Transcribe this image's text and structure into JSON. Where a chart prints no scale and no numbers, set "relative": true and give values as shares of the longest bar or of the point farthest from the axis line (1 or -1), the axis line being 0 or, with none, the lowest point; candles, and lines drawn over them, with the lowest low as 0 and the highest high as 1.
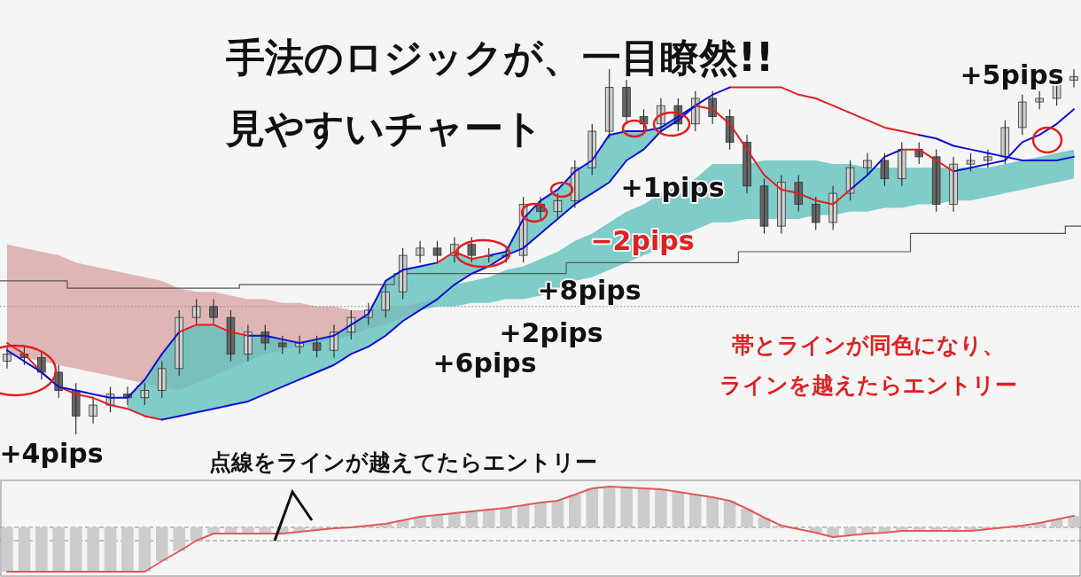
{
  "chart_data": [
    {
      "type": "candlestick",
      "title": "手法のロジックが、一目瞭然!!",
      "subtitle": "見やすいチャート",
      "relative": true,
      "categories": [
        null,
        null,
        null,
        null,
        null,
        null,
        null,
        null,
        null,
        null,
        null,
        null,
        null,
        null,
        null,
        null,
        null,
        null,
        null,
        null,
        null,
        null,
        null,
        null,
        null,
        null,
        null,
        null,
        null,
        null,
        null,
        null,
        null,
        null,
        null,
        null,
        null,
        null,
        null,
        null,
        null,
        null,
        null,
        null,
        null,
        null,
        null,
        null,
        null,
        null,
        null,
        null,
        null,
        null,
        null,
        null,
        null,
        null,
        null,
        null,
        null,
        null,
        null
      ],
      "ohlc": [
        [
          0.2,
          0.24,
          0.18,
          0.22
        ],
        [
          0.22,
          0.24,
          0.19,
          0.21
        ],
        [
          0.21,
          0.23,
          0.15,
          0.17
        ],
        [
          0.17,
          0.19,
          0.1,
          0.12
        ],
        [
          0.12,
          0.14,
          0.0,
          0.05
        ],
        [
          0.05,
          0.1,
          0.03,
          0.08
        ],
        [
          0.08,
          0.13,
          0.06,
          0.11
        ],
        [
          0.11,
          0.13,
          0.08,
          0.1
        ],
        [
          0.1,
          0.14,
          0.08,
          0.12
        ],
        [
          0.12,
          0.2,
          0.1,
          0.18
        ],
        [
          0.18,
          0.34,
          0.16,
          0.32
        ],
        [
          0.32,
          0.37,
          0.3,
          0.35
        ],
        [
          0.35,
          0.37,
          0.3,
          0.32
        ],
        [
          0.32,
          0.34,
          0.2,
          0.22
        ],
        [
          0.22,
          0.3,
          0.2,
          0.28
        ],
        [
          0.28,
          0.3,
          0.23,
          0.25
        ],
        [
          0.25,
          0.27,
          0.22,
          0.24
        ],
        [
          0.24,
          0.27,
          0.22,
          0.25
        ],
        [
          0.25,
          0.27,
          0.21,
          0.23
        ],
        [
          0.23,
          0.3,
          0.21,
          0.28
        ],
        [
          0.28,
          0.34,
          0.26,
          0.32
        ],
        [
          0.32,
          0.36,
          0.3,
          0.34
        ],
        [
          0.34,
          0.41,
          0.32,
          0.39
        ],
        [
          0.39,
          0.51,
          0.37,
          0.49
        ],
        [
          0.49,
          0.53,
          0.47,
          0.51
        ],
        [
          0.51,
          0.53,
          0.47,
          0.49
        ],
        [
          0.49,
          0.54,
          0.47,
          0.52
        ],
        [
          0.52,
          0.54,
          0.47,
          0.49
        ],
        [
          0.49,
          0.51,
          0.47,
          0.49
        ],
        [
          0.49,
          0.51,
          0.47,
          0.49
        ],
        [
          0.49,
          0.65,
          0.47,
          0.63
        ],
        [
          0.63,
          0.65,
          0.59,
          0.61
        ],
        [
          0.61,
          0.66,
          0.59,
          0.64
        ],
        [
          0.64,
          0.75,
          0.62,
          0.73
        ],
        [
          0.73,
          0.85,
          0.71,
          0.83
        ],
        [
          0.83,
          1.0,
          0.81,
          0.95
        ],
        [
          0.95,
          0.97,
          0.85,
          0.87
        ],
        [
          0.87,
          0.89,
          0.83,
          0.85
        ],
        [
          0.85,
          0.92,
          0.83,
          0.9
        ],
        [
          0.9,
          0.92,
          0.83,
          0.85
        ],
        [
          0.85,
          0.94,
          0.83,
          0.92
        ],
        [
          0.92,
          0.94,
          0.85,
          0.87
        ],
        [
          0.87,
          0.89,
          0.78,
          0.8
        ],
        [
          0.8,
          0.82,
          0.66,
          0.68
        ],
        [
          0.68,
          0.7,
          0.55,
          0.57
        ],
        [
          0.57,
          0.71,
          0.55,
          0.69
        ],
        [
          0.69,
          0.71,
          0.61,
          0.63
        ],
        [
          0.63,
          0.65,
          0.56,
          0.58
        ],
        [
          0.58,
          0.68,
          0.56,
          0.66
        ],
        [
          0.66,
          0.75,
          0.64,
          0.73
        ],
        [
          0.73,
          0.77,
          0.71,
          0.75
        ],
        [
          0.75,
          0.77,
          0.68,
          0.7
        ],
        [
          0.7,
          0.8,
          0.68,
          0.78
        ],
        [
          0.78,
          0.8,
          0.74,
          0.76
        ],
        [
          0.76,
          0.78,
          0.61,
          0.63
        ],
        [
          0.63,
          0.76,
          0.61,
          0.74
        ],
        [
          0.74,
          0.77,
          0.72,
          0.75
        ],
        [
          0.75,
          0.78,
          0.73,
          0.76
        ],
        [
          0.76,
          0.86,
          0.74,
          0.84
        ],
        [
          0.84,
          0.93,
          0.82,
          0.91
        ],
        [
          0.91,
          0.94,
          0.89,
          0.92
        ],
        [
          0.92,
          0.99,
          0.9,
          0.97
        ],
        [
          0.97,
          1.0,
          0.95,
          0.98
        ]
      ],
      "series": [
        {
          "type": "line",
          "color": "#d9a5a5",
          "values": [
            null,
            null,
            null,
            null,
            null,
            null,
            null,
            null,
            null,
            null,
            null,
            null,
            null,
            null,
            null,
            null,
            null,
            null,
            null,
            null,
            null,
            null,
            null,
            null,
            null,
            null,
            null,
            null,
            null,
            null,
            null,
            null,
            null,
            null,
            null,
            null,
            null,
            null,
            null,
            null,
            null,
            null,
            null,
            null,
            null,
            null,
            null,
            null,
            null,
            null,
            null,
            null,
            null,
            null,
            null,
            null,
            null,
            null,
            null,
            null,
            null,
            null,
            null
          ],
          "upper": [
            0.52,
            0.51,
            0.5,
            0.49,
            0.47,
            0.46,
            0.45,
            0.44,
            0.43,
            0.42,
            0.4,
            0.39,
            0.39,
            0.38,
            0.37,
            0.37,
            0.36,
            0.36,
            0.35,
            0.35,
            0.34,
            0.34,
            0.35,
            0.35,
            0.36,
            null,
            null,
            null,
            null,
            null,
            null,
            null,
            null,
            null,
            null,
            null,
            null,
            null,
            null,
            null,
            null,
            null,
            null,
            null,
            null,
            null,
            null,
            null,
            null,
            null,
            null,
            null,
            null,
            null,
            null,
            null,
            null,
            null,
            null,
            null,
            null,
            null,
            null
          ],
          "lower": [
            0.22,
            0.21,
            0.2,
            0.19,
            0.18,
            0.17,
            0.16,
            0.15,
            0.14,
            0.13,
            0.12,
            0.14,
            0.16,
            0.18,
            0.2,
            0.22,
            0.23,
            0.24,
            0.25,
            0.26,
            0.27,
            0.29,
            0.3,
            0.32,
            0.34,
            null,
            null,
            null,
            null,
            null,
            null,
            null,
            null,
            null,
            null,
            null,
            null,
            null,
            null,
            null,
            null,
            null,
            null,
            null,
            null,
            null,
            null,
            null,
            null,
            null,
            null,
            null,
            null,
            null,
            null,
            null,
            null,
            null,
            null,
            null,
            null,
            null,
            null
          ]
        },
        {
          "type": "line",
          "color": "#62c2be",
          "values": [
            null,
            null,
            null,
            null,
            null,
            null,
            null,
            null,
            null,
            null,
            null,
            null,
            null,
            null,
            null,
            null,
            null,
            null,
            null,
            null,
            null,
            null,
            null,
            null,
            null,
            null,
            null,
            null,
            null,
            null,
            null,
            null,
            null,
            null,
            null,
            null,
            null,
            null,
            null,
            null,
            null,
            null,
            null,
            null,
            null,
            null,
            null,
            null,
            null,
            null,
            null,
            null,
            null,
            null,
            null,
            null,
            null,
            null,
            null,
            null,
            null,
            null,
            null
          ],
          "upper": [
            null,
            null,
            null,
            null,
            null,
            null,
            null,
            null,
            null,
            null,
            null,
            null,
            null,
            null,
            null,
            null,
            null,
            null,
            null,
            null,
            null,
            null,
            null,
            null,
            0.36,
            0.37,
            0.41,
            0.42,
            0.43,
            0.45,
            0.46,
            0.48,
            0.5,
            0.53,
            0.55,
            0.58,
            0.61,
            0.63,
            0.66,
            0.68,
            0.7,
            0.74,
            0.74,
            0.74,
            0.75,
            0.75,
            0.75,
            0.75,
            0.74,
            0.74,
            0.73,
            0.73,
            0.73,
            0.73,
            0.73,
            0.73,
            0.73,
            0.73,
            0.74,
            0.75,
            0.76,
            0.77,
            0.78
          ],
          "lower": [
            null,
            null,
            null,
            null,
            null,
            null,
            null,
            null,
            null,
            null,
            null,
            null,
            null,
            null,
            null,
            null,
            null,
            null,
            null,
            null,
            null,
            null,
            null,
            null,
            0.34,
            0.35,
            0.35,
            0.36,
            0.36,
            0.37,
            0.37,
            0.38,
            0.4,
            0.42,
            0.43,
            0.45,
            0.47,
            0.49,
            0.51,
            0.54,
            0.56,
            0.58,
            0.58,
            0.59,
            0.59,
            0.59,
            0.59,
            0.6,
            0.6,
            0.61,
            0.61,
            0.62,
            0.62,
            0.63,
            0.63,
            0.64,
            0.64,
            0.65,
            0.66,
            0.67,
            0.68,
            0.69,
            0.7
          ]
        },
        {
          "type": "line",
          "color": "#62c2be",
          "values": [
            null,
            null,
            null,
            null,
            null,
            null,
            null,
            null,
            null,
            null,
            null,
            null,
            null,
            null,
            null,
            null,
            null,
            null,
            null,
            null,
            null,
            null,
            null,
            null,
            null,
            null,
            null,
            null,
            null,
            null,
            null,
            null,
            null,
            null,
            null,
            null,
            null,
            null,
            null,
            null,
            null,
            null,
            null,
            null,
            null,
            null,
            null,
            null,
            null,
            null,
            null,
            null,
            null,
            null,
            null,
            null,
            null,
            null,
            null,
            null,
            null,
            null,
            null
          ],
          "upper": [
            null,
            null,
            null,
            null,
            null,
            null,
            null,
            0.1,
            0.15,
            0.22,
            0.28,
            0.3,
            0.3,
            0.28,
            0.27,
            0.27,
            0.26,
            0.25,
            0.26,
            0.27,
            0.3,
            0.33,
            0.42,
            0.45,
            0.46,
            0.47,
            0.5,
            0.48,
            0.49,
            0.5,
            0.59,
            0.64,
            0.67,
            0.72,
            0.75,
            0.82,
            0.83,
            0.83,
            0.84,
            0.87,
            0.9,
            null,
            null,
            null,
            null,
            null,
            null,
            null,
            null,
            null,
            null,
            null,
            null,
            null,
            null,
            null,
            null,
            null,
            null,
            null,
            null,
            null,
            null
          ],
          "lower": [
            null,
            null,
            null,
            null,
            null,
            null,
            null,
            0.07,
            0.05,
            0.04,
            0.05,
            0.06,
            0.07,
            0.08,
            0.09,
            0.11,
            0.13,
            0.15,
            0.17,
            0.19,
            0.22,
            0.24,
            0.27,
            0.31,
            0.34,
            0.37,
            0.41,
            0.44,
            0.46,
            0.49,
            0.51,
            0.55,
            0.59,
            0.63,
            0.66,
            0.69,
            0.75,
            0.78,
            0.83,
            0.86,
            0.9,
            null,
            null,
            null,
            null,
            null,
            null,
            null,
            null,
            null,
            null,
            null,
            null,
            null,
            null,
            null,
            null,
            null,
            null,
            null,
            null,
            null,
            null
          ]
        },
        {
          "type": "step",
          "color": "#555555",
          "values": [
            0.42,
            0.42,
            0.42,
            0.42,
            0.4,
            0.4,
            0.4,
            0.4,
            0.4,
            0.4,
            0.4,
            0.4,
            0.4,
            0.4,
            0.41,
            0.41,
            0.41,
            0.41,
            0.41,
            0.41,
            0.41,
            0.41,
            0.41,
            0.44,
            0.44,
            0.44,
            0.44,
            0.44,
            0.44,
            0.44,
            0.44,
            0.44,
            0.44,
            0.47,
            0.47,
            0.47,
            0.47,
            0.47,
            0.47,
            0.47,
            0.47,
            0.47,
            0.47,
            0.5,
            0.5,
            0.5,
            0.5,
            0.5,
            0.5,
            0.5,
            0.5,
            0.5,
            0.5,
            0.55,
            0.55,
            0.55,
            0.55,
            0.55,
            0.55,
            0.55,
            0.55,
            0.55,
            0.57
          ]
        },
        {
          "type": "line",
          "color": "#e02020",
          "values": [
            0.25,
            0.22,
            0.17,
            0.13,
            0.11,
            0.1,
            0.08,
            0.07,
            0.05,
            0.04,
            null,
            null,
            null,
            null,
            null,
            null,
            null,
            null,
            null,
            null,
            null,
            null,
            null,
            null,
            null,
            null,
            null,
            null,
            null,
            null,
            null,
            null,
            null,
            null,
            null,
            null,
            null,
            null,
            null,
            null,
            null,
            null,
            0.95,
            0.95,
            0.95,
            0.95,
            0.93,
            0.92,
            0.9,
            0.88,
            0.86,
            0.84,
            0.83,
            0.82,
            null,
            null,
            null,
            null,
            null,
            null,
            null,
            null,
            null
          ]
        },
        {
          "type": "line",
          "color": "#1010d0",
          "values": [
            null,
            null,
            null,
            null,
            null,
            null,
            null,
            null,
            null,
            0.04,
            0.05,
            0.06,
            0.07,
            0.08,
            0.09,
            0.11,
            0.13,
            0.15,
            0.17,
            0.19,
            0.22,
            0.24,
            0.27,
            0.31,
            0.34,
            0.37,
            0.41,
            0.44,
            0.46,
            0.49,
            0.51,
            0.55,
            0.59,
            0.63,
            0.66,
            0.69,
            0.75,
            0.78,
            0.83,
            0.86,
            0.9,
            0.93,
            0.95,
            null,
            null,
            null,
            null,
            null,
            null,
            null,
            null,
            null,
            null,
            0.82,
            0.81,
            0.79,
            0.78,
            0.77,
            0.76,
            0.75,
            0.75,
            0.75,
            0.76
          ]
        },
        {
          "type": "line",
          "color": "#1010d0",
          "values": [
            0.23,
            0.2,
            0.17,
            0.13,
            0.12,
            0.11,
            0.1,
            0.1,
            0.15,
            0.22,
            0.28,
            null,
            null,
            null,
            0.27,
            0.27,
            0.26,
            0.25,
            0.26,
            0.27,
            0.3,
            0.33,
            0.42,
            0.45,
            0.46,
            0.47,
            null,
            null,
            0.49,
            0.5,
            0.59,
            0.64,
            0.67,
            0.72,
            0.75,
            0.82,
            0.83,
            0.83,
            0.84,
            0.87,
            0.9,
            null,
            null,
            null,
            null,
            null,
            null,
            null,
            null,
            0.67,
            0.71,
            0.76,
            0.78,
            null,
            null,
            0.72,
            0.73,
            0.74,
            0.75,
            0.8,
            0.82,
            0.85,
            0.89
          ]
        },
        {
          "type": "line",
          "color": "#e02020",
          "values": [
            null,
            null,
            null,
            null,
            null,
            null,
            null,
            null,
            null,
            null,
            0.28,
            0.3,
            0.3,
            0.28,
            0.27,
            null,
            null,
            null,
            null,
            null,
            null,
            null,
            null,
            null,
            null,
            0.47,
            0.5,
            0.48,
            0.49,
            null,
            null,
            null,
            null,
            null,
            null,
            null,
            null,
            null,
            null,
            null,
            0.9,
            0.89,
            0.85,
            0.78,
            0.71,
            0.67,
            0.66,
            0.64,
            0.63,
            0.67,
            null,
            null,
            0.78,
            0.78,
            0.75,
            0.72,
            null,
            null,
            null,
            null,
            null,
            null,
            null
          ]
        }
      ],
      "ref_lines": [
        {
          "axis": "y",
          "value": 0.35,
          "color": "#999999",
          "line_style": "dotted"
        }
      ],
      "annotations": [
        "+4pips",
        "+6pips",
        "+2pips",
        "+8pips",
        "−2pips",
        "+1pips",
        "+5pips",
        "帯とラインが同色になり、",
        "ラインを越えたらエントリー"
      ]
    },
    {
      "type": "bar",
      "relative": true,
      "categories": [
        null,
        null,
        null,
        null,
        null,
        null,
        null,
        null,
        null,
        null,
        null,
        null,
        null,
        null,
        null,
        null,
        null,
        null,
        null,
        null,
        null,
        null,
        null,
        null,
        null,
        null,
        null,
        null,
        null,
        null,
        null,
        null,
        null,
        null,
        null,
        null,
        null,
        null,
        null,
        null,
        null,
        null,
        null,
        null,
        null,
        null,
        null,
        null,
        null,
        null,
        null,
        null,
        null,
        null,
        null,
        null,
        null,
        null,
        null,
        null,
        null,
        null,
        null
      ],
      "series": [
        {
          "type": "bar",
          "color": "#cccccc",
          "values": [
            -1.0,
            -1.0,
            -1.0,
            -1.0,
            -1.0,
            -1.0,
            -1.0,
            -1.0,
            -1.0,
            -0.76,
            -0.54,
            -0.3,
            -0.14,
            -0.14,
            -0.14,
            -0.14,
            -0.14,
            -0.1,
            -0.06,
            null,
            0.0,
            0.04,
            0.08,
            0.16,
            0.24,
            0.28,
            0.32,
            0.36,
            0.4,
            0.44,
            0.5,
            0.56,
            0.6,
            0.74,
            0.88,
            0.92,
            0.9,
            0.88,
            0.86,
            0.8,
            0.74,
            0.68,
            0.6,
            0.42,
            0.22,
            0.04,
            null,
            -0.12,
            -0.22,
            -0.18,
            -0.14,
            -0.12,
            -0.08,
            -0.08,
            -0.08,
            -0.08,
            -0.08,
            -0.04,
            0.0,
            0.04,
            0.1,
            0.18,
            0.26
          ]
        },
        {
          "type": "line",
          "color": "#e05a5a",
          "values": [
            -1.0,
            -1.0,
            -1.0,
            -1.0,
            -1.0,
            -1.0,
            -1.0,
            -1.0,
            -1.0,
            -0.76,
            -0.54,
            -0.3,
            -0.14,
            -0.14,
            -0.14,
            -0.14,
            -0.14,
            -0.1,
            -0.06,
            -0.02,
            0.0,
            0.04,
            0.08,
            0.16,
            0.24,
            0.28,
            0.32,
            0.36,
            0.4,
            0.44,
            0.5,
            0.56,
            0.6,
            0.74,
            0.88,
            0.92,
            0.9,
            0.88,
            0.86,
            0.8,
            0.74,
            0.68,
            0.6,
            0.42,
            0.22,
            0.04,
            -0.04,
            -0.12,
            -0.22,
            -0.18,
            -0.14,
            -0.12,
            -0.08,
            -0.08,
            -0.08,
            -0.08,
            -0.08,
            -0.04,
            0.0,
            0.04,
            0.1,
            0.18,
            0.26
          ]
        }
      ],
      "ref_lines": [
        {
          "axis": "y",
          "value": 0,
          "color": "#888888",
          "line_style": "dashed"
        },
        {
          "axis": "y",
          "value": -0.3,
          "color": "#888888",
          "line_style": "dashed"
        }
      ],
      "annotations": [
        "点線をラインが越えてたらエントリー"
      ]
    }
  ]
}
